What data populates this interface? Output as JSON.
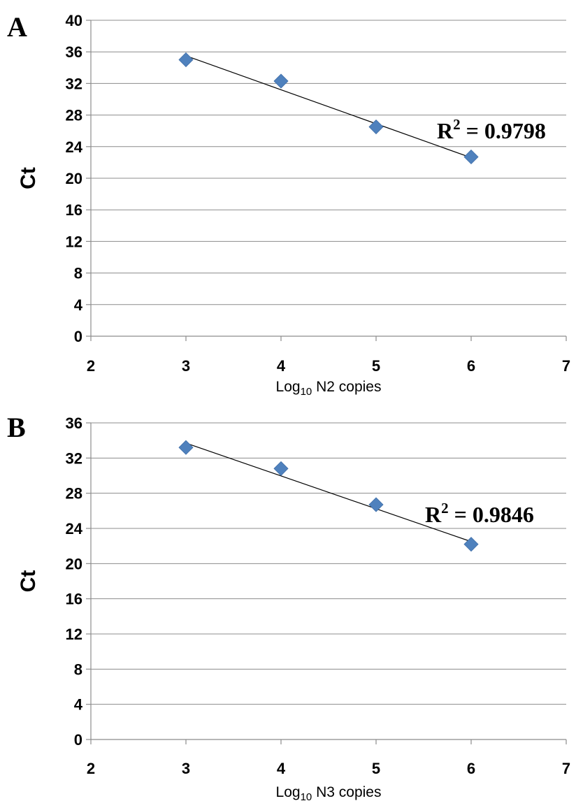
{
  "chart_data": [
    {
      "type": "scatter",
      "panel_label": "A",
      "x": [
        3,
        4,
        5,
        6
      ],
      "y": [
        35.0,
        32.3,
        26.5,
        22.7
      ],
      "trendline": {
        "type": "linear",
        "x_range": [
          3,
          6
        ],
        "y_start": 35.5,
        "y_end": 22.6
      },
      "annotation": {
        "prefix": "R",
        "superscript": "2",
        "text": " = 0.9798"
      },
      "xlabel": {
        "main": "Log",
        "sub": "10",
        "rest": " N2 copies"
      },
      "ylabel": "Ct",
      "xlim": [
        2,
        7
      ],
      "ylim": [
        0,
        40
      ],
      "xticks": [
        2,
        3,
        4,
        5,
        6,
        7
      ],
      "yticks": [
        0,
        4,
        8,
        12,
        16,
        20,
        24,
        28,
        32,
        36,
        40
      ],
      "grid": "horizontal",
      "marker_color": "#4f81bd"
    },
    {
      "type": "scatter",
      "panel_label": "B",
      "x": [
        3,
        4,
        5,
        6
      ],
      "y": [
        33.2,
        30.8,
        26.7,
        22.2
      ],
      "trendline": {
        "type": "linear",
        "x_range": [
          3,
          6
        ],
        "y_start": 33.7,
        "y_end": 22.5
      },
      "annotation": {
        "prefix": "R",
        "superscript": "2",
        "text": " = 0.9846"
      },
      "xlabel": {
        "main": "Log",
        "sub": "10",
        "rest": " N3 copies"
      },
      "ylabel": "Ct",
      "xlim": [
        2,
        7
      ],
      "ylim": [
        0,
        36
      ],
      "xticks": [
        2,
        3,
        4,
        5,
        6,
        7
      ],
      "yticks": [
        0,
        4,
        8,
        12,
        16,
        20,
        24,
        28,
        32,
        36
      ],
      "grid": "horizontal",
      "marker_color": "#4f81bd"
    }
  ]
}
